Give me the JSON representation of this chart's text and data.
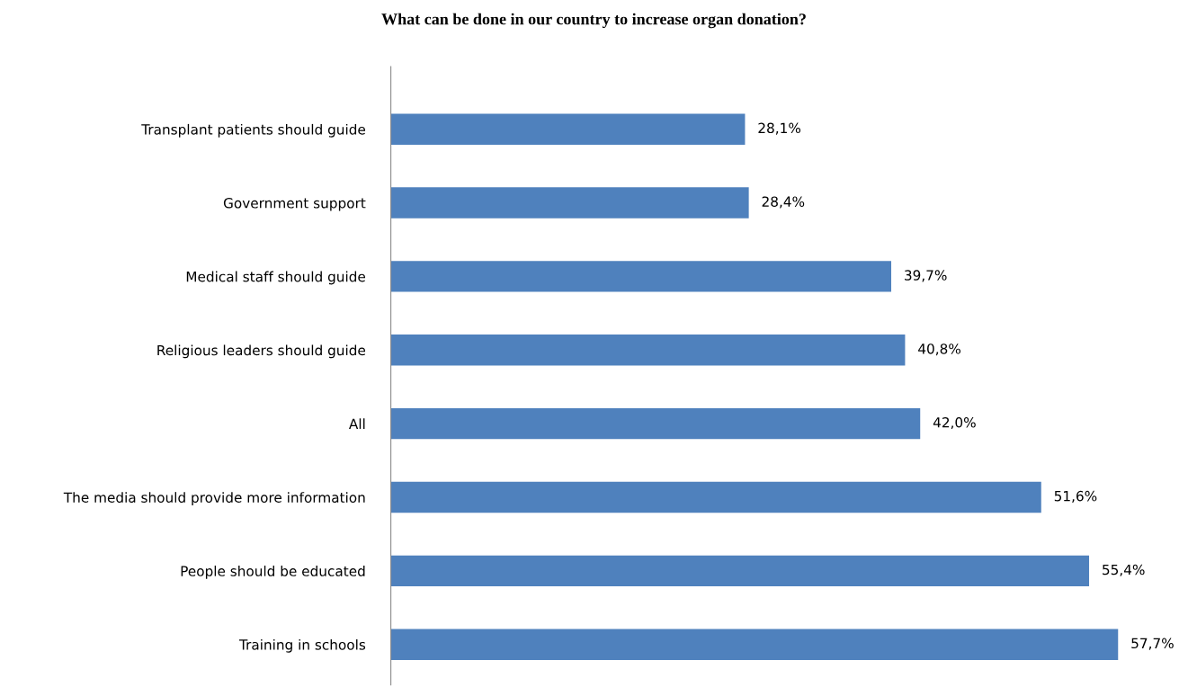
{
  "chart_data": {
    "type": "bar",
    "orientation": "horizontal",
    "title": "What can be done in our country to increase organ donation?",
    "categories": [
      "Transplant patients should guide",
      "Government support",
      "Medical staff should guide",
      "Religious leaders should guide",
      "All",
      "The media should provide more information",
      "People should be educated",
      "Training in schools"
    ],
    "values": [
      28.1,
      28.4,
      39.7,
      40.8,
      42.0,
      51.6,
      55.4,
      57.7
    ],
    "value_labels": [
      "28,1%",
      "28,4%",
      "39,7%",
      "40,8%",
      "42,0%",
      "51,6%",
      "55,4%",
      "57,7%"
    ],
    "color": "#4f81bd",
    "tick_labels": "y"
  }
}
